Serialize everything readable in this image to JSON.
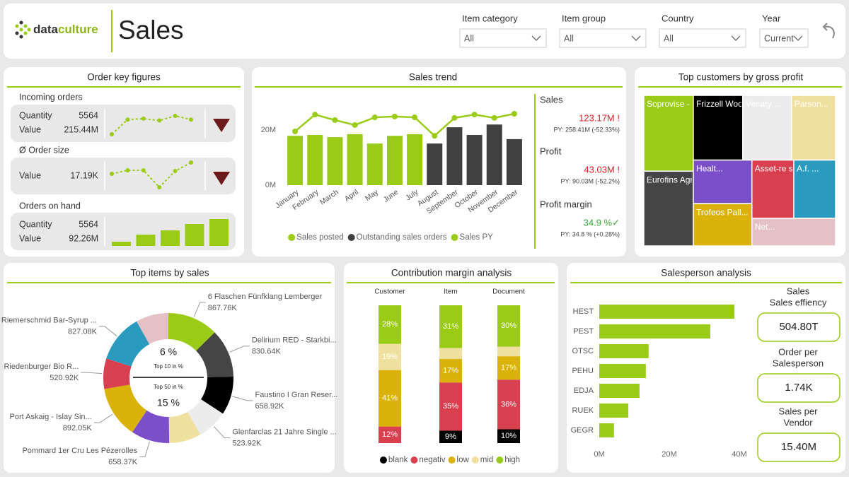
{
  "header": {
    "logo": [
      "data",
      "culture"
    ],
    "title": "Sales"
  },
  "filters": [
    {
      "label": "Item category",
      "value": "All"
    },
    {
      "label": "Item group",
      "value": "All"
    },
    {
      "label": "Country",
      "value": "All"
    },
    {
      "label": "Year",
      "value": "Current"
    }
  ],
  "order_key_figures": {
    "title": "Order key figures",
    "incoming_orders": {
      "title": "Incoming orders",
      "quantity_label": "Quantity",
      "quantity": "5564",
      "value_label": "Value",
      "value": "215.44M",
      "trend": [
        1,
        17,
        18,
        16,
        21,
        17
      ]
    },
    "order_size": {
      "title": "Ø Order size",
      "value_label": "Value",
      "value": "17.19K",
      "trend": [
        21,
        26,
        26,
        2,
        25,
        37
      ]
    },
    "orders_on_hand": {
      "title": "Orders on hand",
      "quantity_label": "Quantity",
      "quantity": "5564",
      "value_label": "Value",
      "value": "92.26M",
      "trend": [
        6,
        16,
        22,
        31,
        38
      ]
    }
  },
  "sales_trend_kpis": [
    {
      "label": "Sales",
      "value": "123.17M !",
      "comparison": "PY: 258.41M (-52.33%)",
      "color": "#e0202a"
    },
    {
      "label": "Profit",
      "value": "43.03M !",
      "comparison": "PY: 90.03M (-52.2%)",
      "color": "#e0202a"
    },
    {
      "label": "Profit margin",
      "value": "34.9 %✓",
      "comparison": "PY: 34.8 % (+0.28%)",
      "color": "#3aa63a"
    }
  ],
  "salesperson_kpis": [
    {
      "label": [
        "Sales",
        "Sales effiency"
      ],
      "value": "504.80T"
    },
    {
      "label": [
        "Order per",
        "Salesperson"
      ],
      "value": "1.74K"
    },
    {
      "label": [
        "Sales per",
        "Vendor"
      ],
      "value": "15.40M"
    }
  ],
  "chart_data": [
    {
      "type": "bar_line",
      "title": "Sales trend",
      "categories": [
        "January",
        "February",
        "March",
        "April",
        "May",
        "June",
        "July",
        "August",
        "September",
        "October",
        "November",
        "December"
      ],
      "series": [
        {
          "name": "Sales posted",
          "type": "bar",
          "color": "#9acb17",
          "values": [
            17.9,
            18.2,
            17.4,
            18.5,
            15.1,
            17.9,
            18.5,
            null,
            null,
            null,
            null,
            null
          ]
        },
        {
          "name": "Outstanding sales orders",
          "type": "bar",
          "color": "#404040",
          "values": [
            null,
            null,
            null,
            null,
            null,
            null,
            null,
            15.1,
            21,
            18.2,
            22,
            16.7
          ]
        },
        {
          "name": "Sales PY",
          "type": "line",
          "color": "#9acb17",
          "values": [
            19.5,
            25.6,
            23.6,
            21.8,
            24.6,
            24.9,
            24.6,
            17.9,
            24.4,
            25.6,
            24.4,
            25.9
          ]
        }
      ],
      "ylim": [
        0,
        28
      ],
      "yticks": [
        {
          "value": 0,
          "label": "0M"
        },
        {
          "value": 20,
          "label": "20M"
        }
      ],
      "legend": "bottom"
    },
    {
      "type": "treemap",
      "title": "Top customers by gross profit",
      "categories": [
        "Soprovise - So...",
        "Eurofins Agros...",
        "Frizzell Wood ...",
        "Venaty ...",
        "Parson...",
        "Healt...",
        "Trofeos Pall...",
        "Asset-re s.r.l.",
        "A.f. ...",
        "Net..."
      ],
      "values": [
        7500,
        7400,
        6400,
        6300,
        5700,
        5100,
        4960,
        4870,
        4860,
        4630
      ],
      "colors": [
        "#9acb17",
        "#454545",
        "#000000",
        "#ececec",
        "#f0e0a0",
        "#7b4fc9",
        "#dab20a",
        "#d8404f",
        "#2a9bbf",
        "#e5c1c5"
      ]
    },
    {
      "type": "donut",
      "title": "Top items by sales",
      "categories": [
        "6 Flaschen Fünfklang Lemberger",
        "Delirium RED - Starkbi...",
        "Faustino I Gran Reser...",
        "Glenfarclas 21 Jahre Single ...",
        null,
        "Pommard 1er Cru Les Pézerolles",
        "Port Askaig - Islay Sin...",
        "Riedenburger Bio R...",
        "Riemerschmid Bar-Syrup ...",
        null
      ],
      "values": [
        867760,
        830640,
        658920,
        523920,
        550000,
        658370,
        892050,
        520920,
        827080,
        560000
      ],
      "value_labels": [
        "867.76K",
        "830.64K",
        "658.92K",
        "523.92K",
        null,
        "658.37K",
        "892.05K",
        "520.92K",
        "827.08K",
        null
      ],
      "colors": [
        "#9acb17",
        "#454545",
        "#000000",
        "#ececec",
        "#f0e0a0",
        "#7b4fc9",
        "#dab20a",
        "#d8404f",
        "#2a9bbf",
        "#e5c1c5"
      ],
      "center": {
        "top_value": "6 %",
        "top_label": "Top 10 in %",
        "bottom_label": "Top 50 in %",
        "bottom_value": "15 %"
      }
    },
    {
      "type": "stacked_bar",
      "title": "Contribution margin analysis",
      "categories": [
        "Customer",
        "Item",
        "Document"
      ],
      "series": [
        {
          "name": "blank",
          "color": "#000000",
          "values": [
            0,
            9,
            10
          ],
          "value_labels": [
            null,
            "9%",
            "10%"
          ]
        },
        {
          "name": "negativ",
          "color": "#d8404f",
          "values": [
            12,
            35,
            36
          ],
          "value_labels": [
            "12%",
            "35%",
            "36%"
          ]
        },
        {
          "name": "low",
          "color": "#dab20a",
          "values": [
            41,
            17,
            17
          ],
          "value_labels": [
            "41%",
            "17%",
            "17%"
          ]
        },
        {
          "name": "mid",
          "color": "#f0e0a0",
          "values": [
            19,
            8,
            7
          ],
          "value_labels": [
            "19%",
            null,
            null
          ]
        },
        {
          "name": "high",
          "color": "#9acb17",
          "values": [
            28,
            31,
            30
          ],
          "value_labels": [
            "28%",
            "31%",
            "30%"
          ]
        }
      ],
      "legend": "bottom"
    },
    {
      "type": "hbar",
      "title": "Salesperson analysis",
      "categories": [
        "HEST",
        "PEST",
        "OTSC",
        "PEHU",
        "EDJA",
        "RUEK",
        "GEGR"
      ],
      "values": [
        38.6,
        31.7,
        14.1,
        13.3,
        11.5,
        8.3,
        4.2
      ],
      "color": "#9acb17",
      "xlim": [
        0,
        40
      ],
      "xticks": [
        {
          "value": 0,
          "label": "0M"
        },
        {
          "value": 20,
          "label": "20M"
        },
        {
          "value": 40,
          "label": "40M"
        }
      ]
    }
  ]
}
